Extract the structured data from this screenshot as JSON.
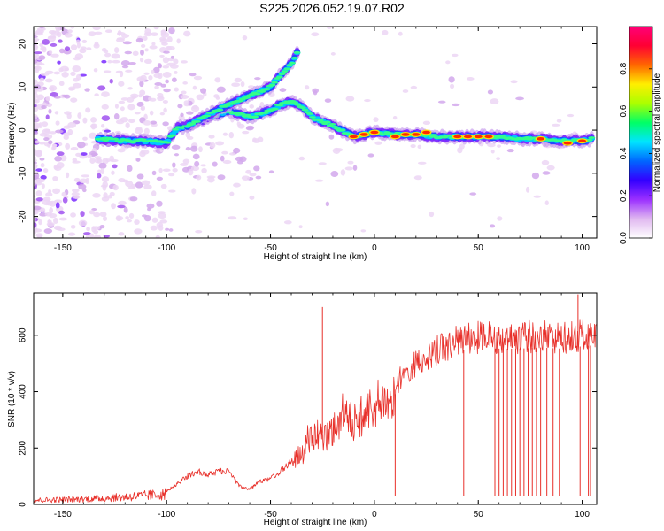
{
  "page": {
    "title": "S225.2026.052.19.07.R02"
  },
  "chart_data": [
    {
      "type": "heatmap",
      "title": "S225.2026.052.19.07.R02",
      "xlabel": "Height of straight line (km)",
      "ylabel": "Frequency (Hz)",
      "xlim": [
        -164,
        107
      ],
      "ylim": [
        -25,
        24
      ],
      "xticks": [
        -150,
        -100,
        -50,
        0,
        50,
        100
      ],
      "xtick_labels": [
        "-150",
        "-100",
        "-50",
        "0",
        "50",
        "100"
      ],
      "yticks": [
        -20,
        -10,
        0,
        10,
        20
      ],
      "ytick_labels": [
        "-20",
        "-10",
        "0",
        "10",
        "20"
      ],
      "colorbar": {
        "label": "Normalized spectral amplitude",
        "range": [
          0,
          1
        ],
        "ticks": [
          0.0,
          0.2,
          0.4,
          0.6,
          0.8
        ],
        "tick_labels": [
          "0.0",
          "0.2",
          "0.4",
          "0.6",
          "0.8"
        ],
        "colors": [
          "#ffffff",
          "#e0b8f0",
          "#9b30ff",
          "#3300ff",
          "#0066ff",
          "#00e5ff",
          "#00ff66",
          "#aaff00",
          "#ffee00",
          "#ff6600",
          "#ff0033",
          "#ff0077"
        ]
      },
      "ridges": [
        {
          "name": "main-ridge",
          "x": [
            -133,
            -120,
            -110,
            -100,
            -95,
            -90,
            -80,
            -70,
            -60,
            -50,
            -45,
            -40,
            -35,
            -30,
            -20,
            -10,
            0,
            10,
            20,
            30,
            40,
            50,
            60,
            70,
            80,
            90,
            100,
            105
          ],
          "y": [
            -2.0,
            -2.5,
            -2.5,
            -3.0,
            0.5,
            1.0,
            3.0,
            4.5,
            3.0,
            4.5,
            6.0,
            6.5,
            5.5,
            3.0,
            1.0,
            -1.5,
            -0.5,
            -1.0,
            -1.0,
            -1.5,
            -1.5,
            -1.5,
            -1.5,
            -2.0,
            -2.0,
            -2.5,
            -2.5,
            -2.0
          ]
        },
        {
          "name": "upper-branch",
          "x": [
            -90,
            -80,
            -70,
            -60,
            -50,
            -45,
            -40,
            -37
          ],
          "y": [
            1.0,
            3.5,
            6.0,
            8.0,
            10.0,
            13.0,
            15.5,
            18.0
          ]
        }
      ],
      "hotspots": {
        "x": [
          -10,
          -5,
          0,
          10,
          15,
          20,
          25,
          40,
          45,
          50,
          55,
          80,
          93,
          100
        ],
        "y": [
          -1.5,
          -1.0,
          -0.5,
          -1.5,
          -1.0,
          -1.0,
          -0.5,
          -1.5,
          -1.5,
          -1.5,
          -1.5,
          -2.0,
          -3.0,
          -2.5
        ]
      }
    },
    {
      "type": "line",
      "xlabel": "Height of straight line (km)",
      "ylabel": "SNR (10 * v/v)",
      "xlim": [
        -164,
        107
      ],
      "ylim": [
        0,
        750
      ],
      "xticks": [
        -150,
        -100,
        -50,
        0,
        50,
        100
      ],
      "xtick_labels": [
        "-150",
        "-100",
        "-50",
        "0",
        "50",
        "100"
      ],
      "yticks": [
        0,
        200,
        400,
        600
      ],
      "ytick_labels": [
        "0",
        "200",
        "400",
        "600"
      ],
      "series": [
        {
          "name": "SNR",
          "color": "#e8302a",
          "envelope_x": [
            -164,
            -140,
            -120,
            -105,
            -100,
            -95,
            -90,
            -85,
            -80,
            -75,
            -70,
            -65,
            -60,
            -55,
            -50,
            -45,
            -40,
            -35,
            -30,
            -25,
            -20,
            -15,
            -10,
            -5,
            0,
            5,
            10,
            15,
            20,
            25,
            30,
            35,
            40,
            50,
            60,
            70,
            80,
            90,
            100,
            107
          ],
          "envelope_y": [
            20,
            25,
            35,
            45,
            50,
            80,
            110,
            130,
            115,
            130,
            130,
            70,
            60,
            90,
            100,
            130,
            170,
            230,
            320,
            300,
            330,
            400,
            360,
            400,
            440,
            450,
            460,
            520,
            550,
            580,
            600,
            620,
            640,
            650,
            650,
            650,
            655,
            650,
            660,
            665
          ],
          "spikes": [
            {
              "x": -25,
              "y": 700
            },
            {
              "x": 10,
              "y": 30
            },
            {
              "x": 43,
              "y": 30
            },
            {
              "x": 58,
              "y": 30
            },
            {
              "x": 60,
              "y": 30
            },
            {
              "x": 62,
              "y": 30
            },
            {
              "x": 64,
              "y": 30
            },
            {
              "x": 66,
              "y": 30
            },
            {
              "x": 68,
              "y": 30
            },
            {
              "x": 70,
              "y": 30
            },
            {
              "x": 72,
              "y": 30
            },
            {
              "x": 74,
              "y": 30
            },
            {
              "x": 76,
              "y": 30
            },
            {
              "x": 78,
              "y": 30
            },
            {
              "x": 80,
              "y": 30
            },
            {
              "x": 83,
              "y": 30
            },
            {
              "x": 86,
              "y": 30
            },
            {
              "x": 89,
              "y": 30
            },
            {
              "x": 99,
              "y": 30
            },
            {
              "x": 103,
              "y": 30
            },
            {
              "x": 104,
              "y": 30
            },
            {
              "x": 98,
              "y": 745
            }
          ]
        }
      ]
    }
  ]
}
